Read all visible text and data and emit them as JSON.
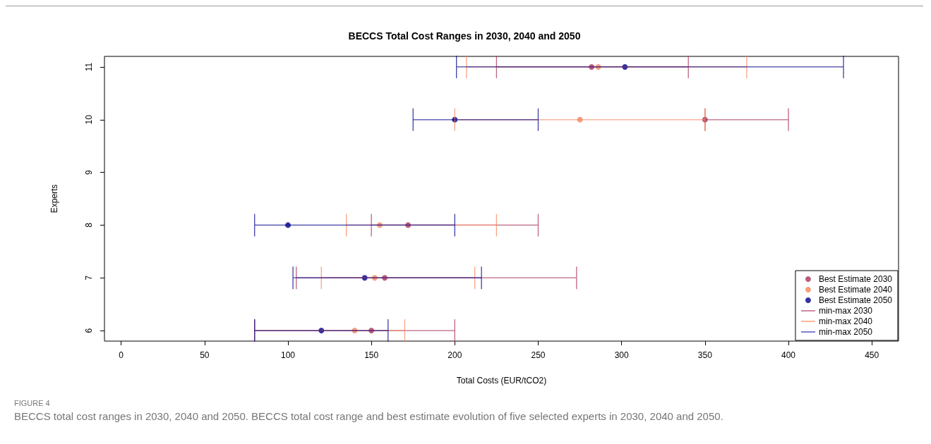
{
  "chart_data": {
    "type": "scatter",
    "title": "BECCS Total Cost Ranges in 2030, 2040 and 2050",
    "xlabel": "Total Costs (EUR/tCO2)",
    "ylabel": "Experts",
    "xlim": [
      -10,
      466
    ],
    "xticks": [
      0,
      50,
      100,
      150,
      200,
      250,
      300,
      350,
      400,
      450
    ],
    "ylim": [
      5.8,
      11.2
    ],
    "yticks": [
      6,
      7,
      8,
      9,
      10,
      11
    ],
    "grid": false,
    "legend": "bottom right",
    "marker": "circle",
    "series": [
      {
        "name": "Best Estimate 2030",
        "color": "#a8325e",
        "x": [
          150,
          158,
          172,
          350,
          282
        ],
        "values": [
          6,
          7,
          8,
          10,
          11
        ],
        "xerrors": [
          [
            80,
            200
          ],
          [
            105,
            273
          ],
          [
            150,
            250
          ],
          [
            350,
            400
          ],
          [
            225,
            340
          ]
        ]
      },
      {
        "name": "Best Estimate 2040",
        "color": "#f4875c",
        "x": [
          140,
          152,
          155,
          275,
          286
        ],
        "values": [
          6,
          7,
          8,
          10,
          11
        ],
        "xerrors": [
          [
            80,
            170
          ],
          [
            120,
            212
          ],
          [
            135,
            225
          ],
          [
            200,
            350
          ],
          [
            207,
            375
          ]
        ]
      },
      {
        "name": "Best Estimate 2050",
        "color": "#00008b",
        "x": [
          120,
          146,
          100,
          200,
          302
        ],
        "values": [
          6,
          7,
          8,
          10,
          11
        ],
        "xerrors": [
          [
            80,
            160
          ],
          [
            103,
            216
          ],
          [
            80,
            200
          ],
          [
            175,
            250
          ],
          [
            201,
            433
          ]
        ]
      },
      {
        "name": "min-max 2030",
        "type": "line",
        "color": "#b03a6a"
      },
      {
        "name": "min-max 2040",
        "type": "line",
        "color": "#f4845a"
      },
      {
        "name": "min-max 2050",
        "type": "line",
        "color": "#2b2bb0"
      }
    ],
    "annotations": [
      "FIGURE 4",
      "BECCS total cost ranges in 2030, 2040 and 2050. BECCS total cost range and best estimate evolution of five selected experts in 2030, 2040 and 2050."
    ]
  }
}
